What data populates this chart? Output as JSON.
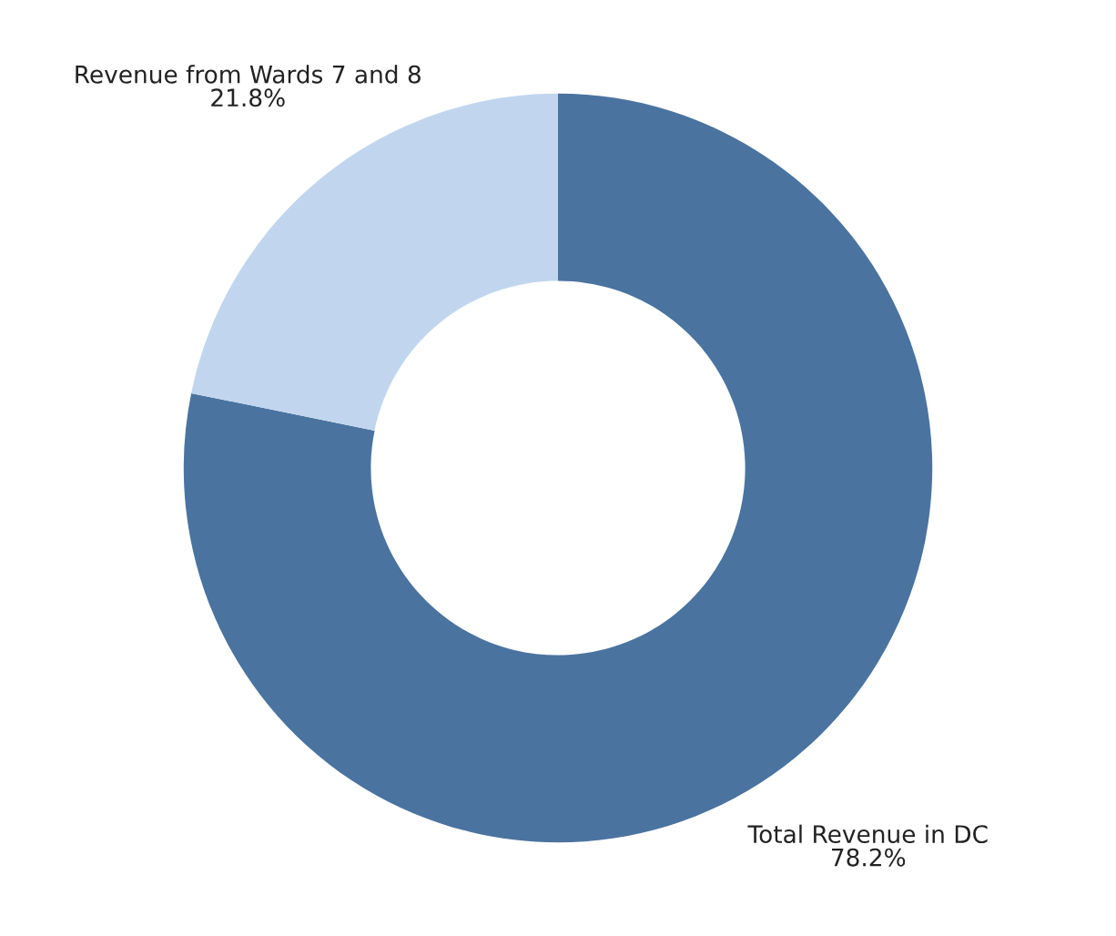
{
  "chart_data": {
    "type": "donut",
    "categories": [
      "Total Revenue in DC",
      "Revenue from Wards 7 and 8"
    ],
    "values": [
      78.2,
      21.8
    ],
    "colors": [
      "#4a739f",
      "#c1d6ee"
    ],
    "value_labels": [
      "78.2%",
      "21.8%"
    ]
  }
}
